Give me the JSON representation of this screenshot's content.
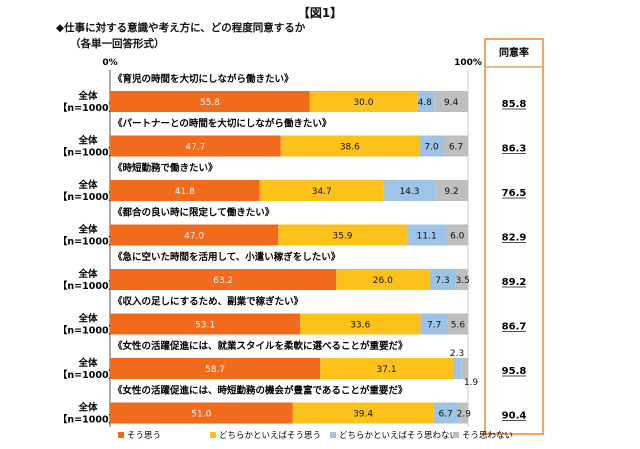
{
  "figure_title": "【図1】",
  "question": "◆仕事に対する意識や考え方に、どの程度同意するか",
  "note": "（各単一回答形式）",
  "agree_rate_header": "同意率",
  "colors": {
    "strong_agree": "#f26a1b",
    "somewhat_agree": "#fcc21b",
    "somewhat_disagree": "#9dc3e6",
    "strong_disagree": "#bfbfbf",
    "frame": "#f4a460"
  },
  "chart_data": {
    "type": "bar",
    "orientation": "horizontal",
    "stacked": true,
    "xlim": [
      0,
      100
    ],
    "tick_labels": [
      "0%",
      "100%"
    ],
    "legend_position": "bottom",
    "row_group_label": "全体",
    "row_n_label": "【n=1000】",
    "categories": [
      "《育児の時間を大切にしながら働きたい》",
      "《パートナーとの時間を大切にしながら働きたい》",
      "《時短勤務で働きたい》",
      "《都合の良い時に限定して働きたい》",
      "《急に空いた時間を活用して、小遣い稼ぎをしたい》",
      "《収入の足しにするため、副業で稼ぎたい》",
      "《女性の活躍促進には、就業スタイルを柔軟に選べることが重要だ》",
      "《女性の活躍促進には、時短勤務の機会が豊富であることが重要だ》"
    ],
    "series": [
      {
        "name": "そう思う",
        "values": [
          55.8,
          47.7,
          41.8,
          47.0,
          63.2,
          53.1,
          58.7,
          51.0
        ]
      },
      {
        "name": "どちらかといえばそう思う",
        "values": [
          30.0,
          38.6,
          34.7,
          35.9,
          26.0,
          33.6,
          37.1,
          39.4
        ]
      },
      {
        "name": "どちらかといえばそう思わない",
        "values": [
          4.8,
          7.0,
          14.3,
          11.1,
          7.3,
          7.7,
          2.3,
          6.7
        ]
      },
      {
        "name": "そう思わない",
        "values": [
          9.4,
          6.7,
          9.2,
          6.0,
          3.5,
          5.6,
          1.9,
          2.9
        ]
      }
    ],
    "agree_rate": [
      "85.8",
      "86.3",
      "76.5",
      "82.9",
      "89.2",
      "86.7",
      "95.8",
      "90.4"
    ]
  }
}
